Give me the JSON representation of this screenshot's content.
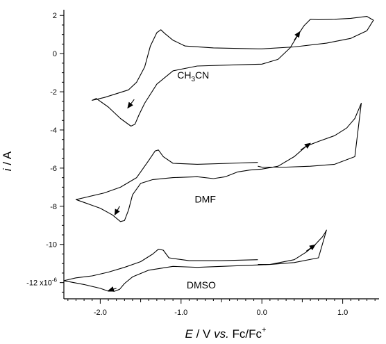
{
  "chart_data": {
    "type": "line",
    "title": "",
    "xlabel": {
      "var": "E",
      "rest": " / V ",
      "vs": "vs.",
      "ref": " Fc/Fc",
      "sup": "+"
    },
    "ylabel": {
      "var": "i",
      "rest": " / A"
    },
    "xlim": [
      -2.45,
      1.45
    ],
    "ylim": [
      -12.85,
      2.3
    ],
    "x_ticks": [
      {
        "value": -2.0,
        "label": "-2.0"
      },
      {
        "value": -1.0,
        "label": "-1.0"
      },
      {
        "value": 0.0,
        "label": "0.0"
      },
      {
        "value": 1.0,
        "label": "1.0"
      }
    ],
    "y_ticks": [
      {
        "value": 2,
        "label": "2"
      },
      {
        "value": 0,
        "label": "0"
      },
      {
        "value": -2,
        "label": "-2"
      },
      {
        "value": -4,
        "label": "-4"
      },
      {
        "value": -6,
        "label": "-6"
      },
      {
        "value": -8,
        "label": "-8"
      },
      {
        "value": -10,
        "label": "-10"
      },
      {
        "value": -12,
        "label": "-12 x10",
        "sup": "-6"
      }
    ],
    "series": [
      {
        "name": "CH3CN",
        "label_text": {
          "pre": "CH",
          "sub": "3",
          "post": "CN"
        },
        "label_pos": [
          -0.85,
          -1.3
        ],
        "x": [
          -0.05,
          -0.6,
          -0.95,
          -1.1,
          -1.2,
          -1.25,
          -1.3,
          -1.38,
          -1.45,
          -1.55,
          -1.65,
          -1.8,
          -1.95,
          -2.1,
          -2.05,
          -1.9,
          -1.75,
          -1.62,
          -1.57,
          -1.52,
          -1.45,
          -1.3,
          -1.1,
          -0.8,
          -0.4,
          0.0,
          0.2,
          0.35,
          0.45,
          0.52,
          0.6,
          0.7,
          0.9,
          1.1,
          1.3,
          1.38,
          1.3,
          1.1,
          0.8,
          0.4,
          0.0,
          -0.05
        ],
        "y": [
          0.25,
          0.3,
          0.4,
          0.7,
          1.05,
          1.25,
          1.1,
          0.4,
          -0.7,
          -1.5,
          -1.9,
          -2.1,
          -2.3,
          -2.45,
          -2.35,
          -2.8,
          -3.4,
          -3.8,
          -3.7,
          -3.2,
          -2.6,
          -1.6,
          -0.9,
          -0.65,
          -0.6,
          -0.55,
          -0.3,
          0.3,
          1.0,
          1.45,
          1.8,
          1.78,
          1.8,
          1.85,
          1.95,
          1.75,
          1.2,
          0.8,
          0.55,
          0.35,
          0.25,
          0.25
        ],
        "arrows": [
          {
            "from": [
              -1.58,
              -2.4
            ],
            "to": [
              -1.66,
              -2.85
            ]
          },
          {
            "from": [
              0.4,
              0.7
            ],
            "to": [
              0.47,
              1.15
            ]
          }
        ]
      },
      {
        "name": "DMF",
        "label_text": {
          "pre": "DMF",
          "sub": "",
          "post": ""
        },
        "label_pos": [
          -0.7,
          -7.8
        ],
        "x": [
          -0.05,
          -0.4,
          -0.8,
          -1.1,
          -1.22,
          -1.28,
          -1.32,
          -1.4,
          -1.55,
          -1.75,
          -1.95,
          -2.15,
          -2.3,
          -2.2,
          -2.0,
          -1.85,
          -1.75,
          -1.7,
          -1.65,
          -1.6,
          -1.5,
          -1.35,
          -1.1,
          -0.8,
          -0.6,
          -0.45,
          -0.3,
          -0.15,
          0.0,
          0.2,
          0.4,
          0.55,
          0.7,
          0.9,
          1.05,
          1.15,
          1.2,
          1.23,
          1.15,
          0.9,
          0.6,
          0.3,
          0.0,
          -0.05
        ],
        "y": [
          -5.7,
          -5.75,
          -5.8,
          -5.75,
          -5.4,
          -5.05,
          -5.1,
          -5.6,
          -6.5,
          -7.0,
          -7.3,
          -7.5,
          -7.65,
          -7.8,
          -8.1,
          -8.45,
          -8.8,
          -8.75,
          -8.2,
          -7.4,
          -6.8,
          -6.6,
          -6.5,
          -6.45,
          -6.55,
          -6.45,
          -6.2,
          -6.1,
          -6.05,
          -5.9,
          -5.4,
          -4.85,
          -4.6,
          -4.3,
          -3.9,
          -3.4,
          -2.9,
          -2.6,
          -5.4,
          -5.8,
          -5.9,
          -5.95,
          -5.95,
          -5.9
        ],
        "arrows": [
          {
            "from": [
              -1.76,
              -8.0
            ],
            "to": [
              -1.82,
              -8.45
            ]
          },
          {
            "from": [
              0.48,
              -5.05
            ],
            "to": [
              0.6,
              -4.7
            ]
          }
        ]
      },
      {
        "name": "DMSO",
        "label_text": {
          "pre": "DMSO",
          "sub": "",
          "post": ""
        },
        "label_pos": [
          -0.75,
          -12.3
        ],
        "x": [
          -0.05,
          -0.5,
          -0.9,
          -1.15,
          -1.22,
          -1.28,
          -1.35,
          -1.5,
          -1.7,
          -1.9,
          -2.1,
          -2.3,
          -2.45,
          -2.2,
          -2.0,
          -1.9,
          -1.82,
          -1.76,
          -1.7,
          -1.6,
          -1.4,
          -1.1,
          -0.8,
          -0.5,
          -0.2,
          0.1,
          0.4,
          0.55,
          0.65,
          0.75,
          0.78,
          0.8,
          0.7,
          0.4,
          0.1,
          -0.05
        ],
        "y": [
          -10.8,
          -10.85,
          -10.85,
          -10.7,
          -10.3,
          -10.25,
          -10.5,
          -10.9,
          -11.2,
          -11.45,
          -11.65,
          -11.75,
          -11.9,
          -12.1,
          -12.3,
          -12.45,
          -12.45,
          -12.35,
          -12.05,
          -11.7,
          -11.35,
          -11.15,
          -11.2,
          -11.15,
          -11.1,
          -11.05,
          -10.8,
          -10.4,
          -10.05,
          -9.6,
          -9.4,
          -9.25,
          -10.7,
          -10.95,
          -11.05,
          -11.05
        ],
        "arrows": [
          {
            "from": [
              -1.8,
              -12.3
            ],
            "to": [
              -1.9,
              -12.42
            ]
          },
          {
            "from": [
              0.55,
              -10.35
            ],
            "to": [
              0.66,
              -10.02
            ]
          }
        ]
      }
    ]
  }
}
